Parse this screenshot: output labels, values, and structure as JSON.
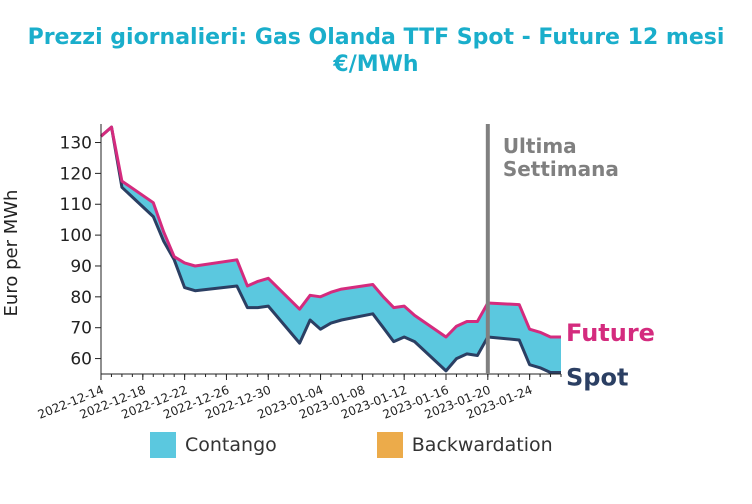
{
  "title": "Prezzi giornalieri: Gas Olanda TTF Spot - Future 12 mesi",
  "subtitle": "€/MWh",
  "colors": {
    "future": "#d42b7e",
    "spot": "#2b3f63",
    "contango": "#5bc8df",
    "backwardation": "#ecab4a",
    "title": "#1aaecb",
    "vline": "#808080"
  },
  "chart_data": {
    "type": "area",
    "ylabel": "Euro per MWh",
    "xlabel": "",
    "ylim": [
      55,
      136
    ],
    "yticks": [
      60,
      70,
      80,
      90,
      100,
      110,
      120,
      130
    ],
    "x_start": "2022-12-14",
    "x_end": "2023-01-27",
    "xticks": [
      "2022-12-14",
      "2022-12-18",
      "2022-12-22",
      "2022-12-26",
      "2022-12-30",
      "2023-01-04",
      "2023-01-08",
      "2023-01-12",
      "2023-01-16",
      "2023-01-20",
      "2023-01-24"
    ],
    "x": [
      "2022-12-14",
      "2022-12-15",
      "2022-12-16",
      "2022-12-19",
      "2022-12-20",
      "2022-12-21",
      "2022-12-22",
      "2022-12-23",
      "2022-12-27",
      "2022-12-28",
      "2022-12-29",
      "2022-12-30",
      "2023-01-02",
      "2023-01-03",
      "2023-01-04",
      "2023-01-05",
      "2023-01-06",
      "2023-01-09",
      "2023-01-10",
      "2023-01-11",
      "2023-01-12",
      "2023-01-13",
      "2023-01-16",
      "2023-01-17",
      "2023-01-18",
      "2023-01-19",
      "2023-01-20",
      "2023-01-23",
      "2023-01-24",
      "2023-01-25",
      "2023-01-26",
      "2023-01-27"
    ],
    "series": [
      {
        "name": "Future",
        "values": [
          132,
          135,
          117.5,
          110.5,
          101,
          93,
          91,
          90,
          92,
          83.5,
          85,
          86,
          76,
          80.5,
          80,
          81.5,
          82.5,
          84,
          80,
          76.5,
          77,
          74,
          67,
          70.5,
          72,
          72,
          78,
          77.5,
          69.5,
          68.5,
          67,
          67
        ]
      },
      {
        "name": "Spot",
        "values": [
          132,
          135,
          115.5,
          106,
          98,
          92,
          83,
          82,
          83.5,
          76.5,
          76.5,
          77,
          65,
          72.5,
          69.5,
          71.5,
          72.5,
          74.5,
          70,
          65.5,
          67,
          65.5,
          56,
          60,
          61.5,
          61,
          67,
          66,
          58,
          57,
          55.5,
          55.5
        ]
      }
    ],
    "vline_date": "2023-01-20",
    "annotation": "Ultima\nSettimana",
    "end_labels": [
      "Future",
      "Spot"
    ],
    "legend": [
      "Contango",
      "Backwardation"
    ],
    "legend_position": "bottom"
  }
}
